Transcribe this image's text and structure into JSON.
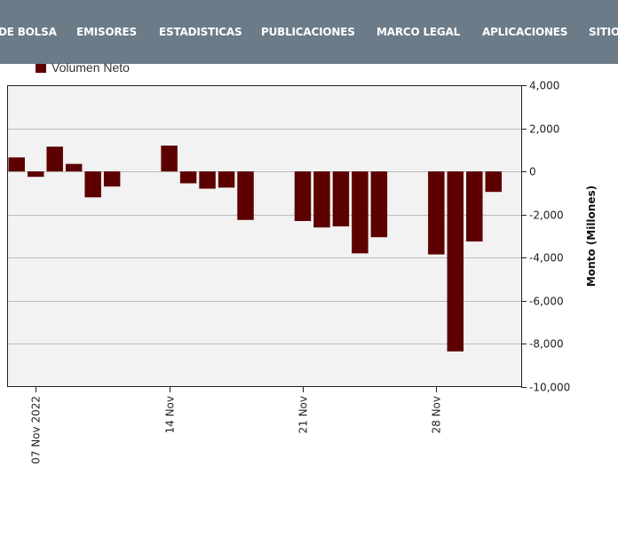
{
  "nav": {
    "items": [
      "DE BOLSA",
      "EMISORES",
      "ESTADISTICAS",
      "PUBLICACIONES",
      "MARCO LEGAL",
      "APLICACIONES",
      "SITIOS"
    ]
  },
  "colors": {
    "navbar": "#6b7b88",
    "bar": "#5c0000",
    "plot_bg": "#f2f2f2",
    "grid": "#bbbbbb"
  },
  "chart_data": {
    "type": "bar",
    "title": "",
    "legend": {
      "entries": [
        "Volumen Neto"
      ],
      "placement": "top-left"
    },
    "x_axis": {
      "type": "date",
      "tick_labels": [
        "07 Nov 2022",
        "14 Nov",
        "21 Nov",
        "28 Nov"
      ],
      "tick_dates": [
        "2022-11-07",
        "2022-11-14",
        "2022-11-21",
        "2022-11-28"
      ],
      "range": [
        "2022-11-06",
        "2022-12-03"
      ]
    },
    "y_axis": {
      "label": "Monto (Millones)",
      "position": "right",
      "range": [
        -10000,
        4000
      ],
      "ticks": [
        4000,
        2000,
        0,
        -2000,
        -4000,
        -6000,
        -8000,
        -10000
      ],
      "tick_labels": [
        "4,000",
        "2,000",
        "0",
        "-2,000",
        "-4,000",
        "-6,000",
        "-8,000",
        "-10,000"
      ]
    },
    "grid": true,
    "series": [
      {
        "name": "Volumen Neto",
        "points": [
          {
            "x": "2022-11-06",
            "y": 650
          },
          {
            "x": "2022-11-07",
            "y": -250
          },
          {
            "x": "2022-11-08",
            "y": 1150
          },
          {
            "x": "2022-11-09",
            "y": 350
          },
          {
            "x": "2022-11-10",
            "y": -1200
          },
          {
            "x": "2022-11-11",
            "y": -700
          },
          {
            "x": "2022-11-14",
            "y": 1200
          },
          {
            "x": "2022-11-15",
            "y": -550
          },
          {
            "x": "2022-11-16",
            "y": -800
          },
          {
            "x": "2022-11-17",
            "y": -750
          },
          {
            "x": "2022-11-18",
            "y": -2250
          },
          {
            "x": "2022-11-21",
            "y": -2300
          },
          {
            "x": "2022-11-22",
            "y": -2600
          },
          {
            "x": "2022-11-23",
            "y": -2550
          },
          {
            "x": "2022-11-24",
            "y": -3800
          },
          {
            "x": "2022-11-25",
            "y": -3050
          },
          {
            "x": "2022-11-28",
            "y": -3850
          },
          {
            "x": "2022-11-29",
            "y": -8350
          },
          {
            "x": "2022-11-30",
            "y": -3250
          },
          {
            "x": "2022-12-01",
            "y": -950
          }
        ]
      }
    ]
  }
}
